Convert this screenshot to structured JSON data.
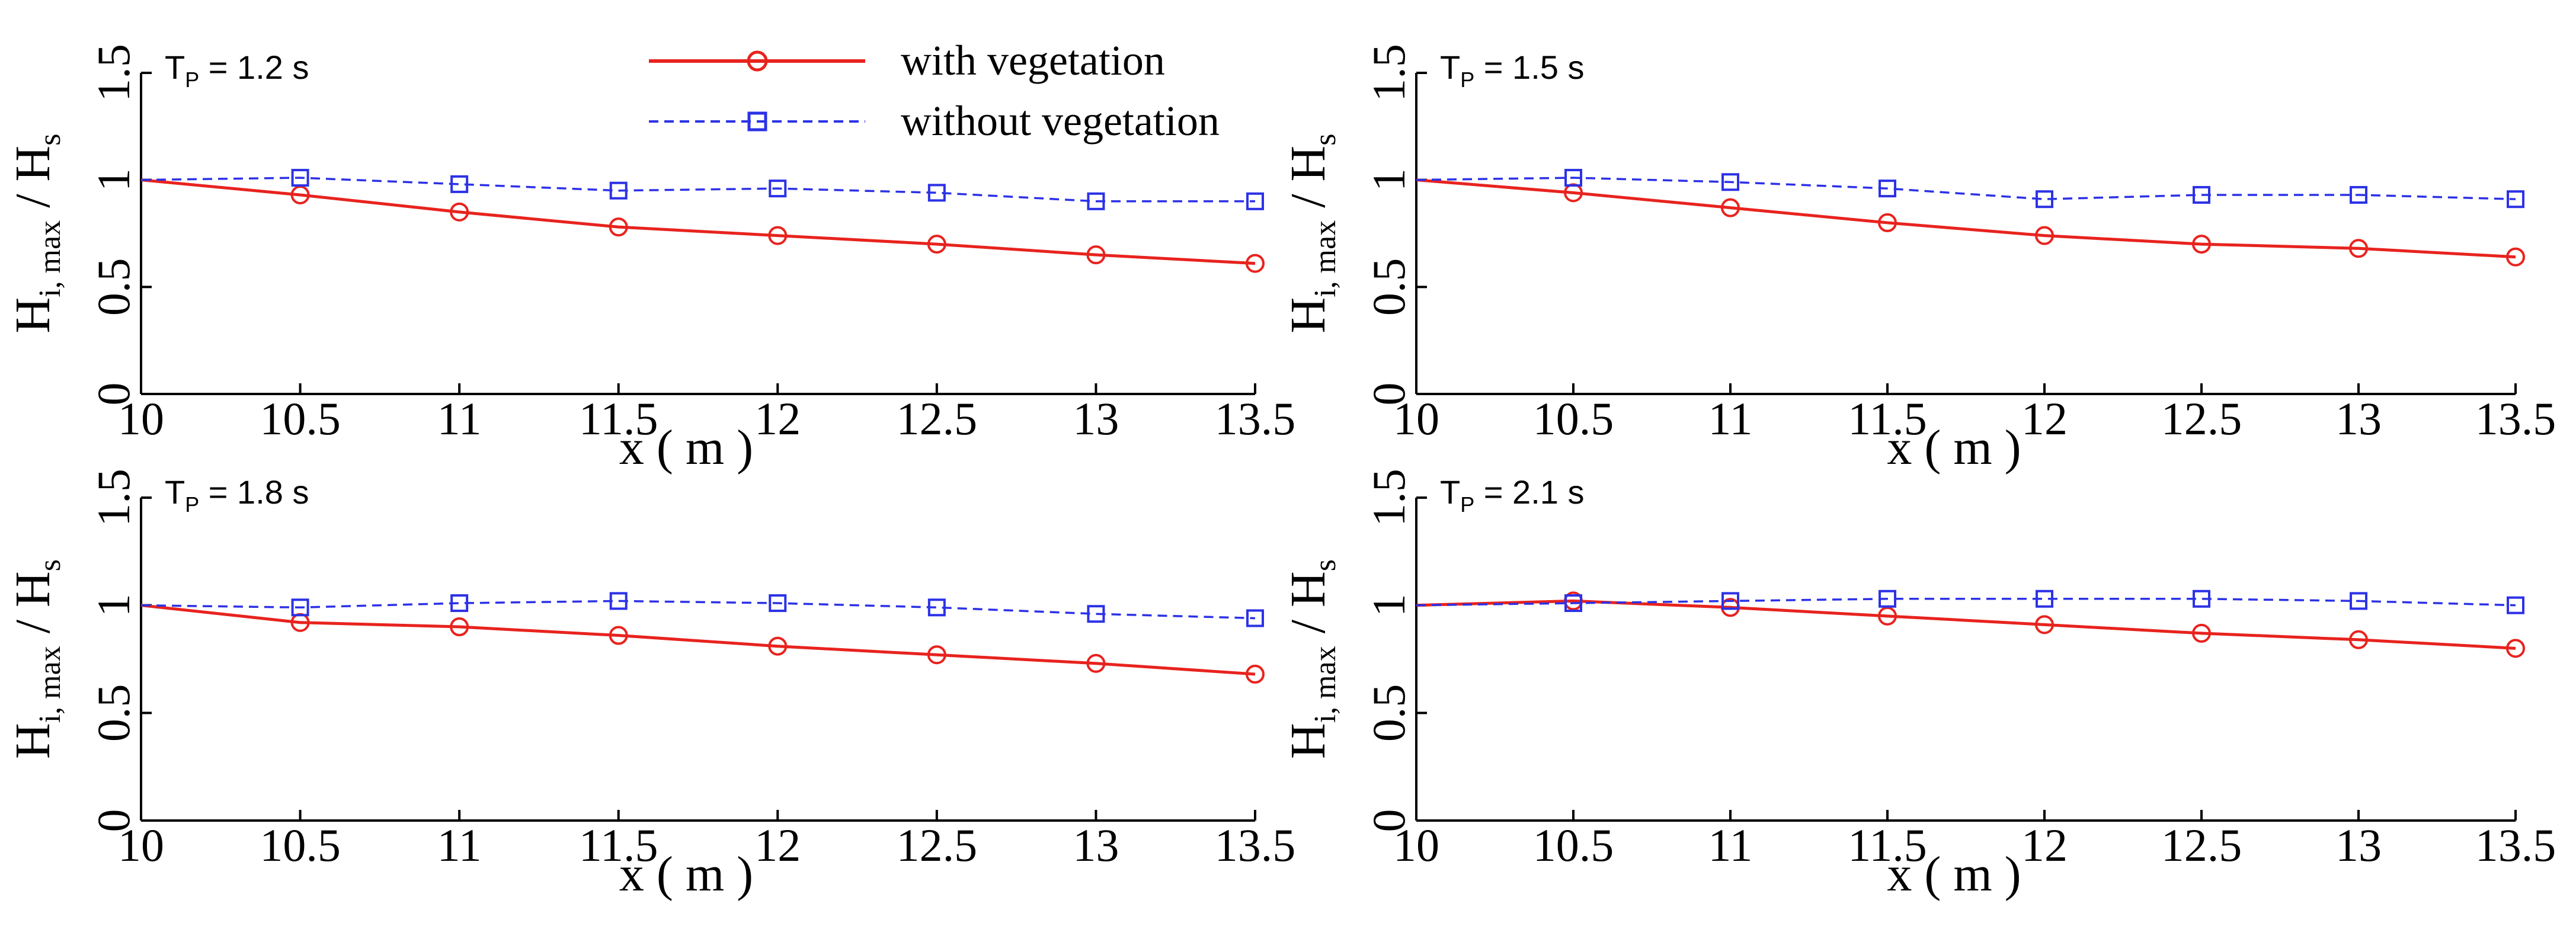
{
  "chart_data": [
    {
      "type": "line",
      "panel_label": "T",
      "panel_label_sub": "P",
      "panel_label_value": " = 1.2 s",
      "xlabel": "x ( m )",
      "ylabel": "H",
      "ylabel_sub": "i, max",
      "ylabel_rest": " / H",
      "ylabel_sub2": "s",
      "xlim": [
        10,
        13.5
      ],
      "ylim": [
        0,
        1.5
      ],
      "xticks": [
        10,
        10.5,
        11,
        11.5,
        12,
        12.5,
        13,
        13.5
      ],
      "xtick_labels": [
        "10",
        "10.5",
        "11",
        "11.5",
        "12",
        "12.5",
        "13",
        "13.5"
      ],
      "yticks": [
        0,
        0.5,
        1,
        1.5
      ],
      "ytick_labels": [
        "0",
        "0.5",
        "1",
        "1.5"
      ],
      "x": [
        10,
        10.5,
        11,
        11.5,
        12,
        12.5,
        13,
        13.5
      ],
      "series": [
        {
          "name": "with vegetation",
          "values": [
            1.0,
            0.93,
            0.85,
            0.78,
            0.74,
            0.7,
            0.65,
            0.61
          ]
        },
        {
          "name": "without vegetation",
          "values": [
            1.0,
            1.01,
            0.98,
            0.95,
            0.96,
            0.94,
            0.9,
            0.9
          ]
        }
      ]
    },
    {
      "type": "line",
      "panel_label": "T",
      "panel_label_sub": "P",
      "panel_label_value": " = 1.5 s",
      "xlabel": "x ( m )",
      "ylabel": "H",
      "ylabel_sub": "i, max",
      "ylabel_rest": " / H",
      "ylabel_sub2": "s",
      "xlim": [
        10,
        13.5
      ],
      "ylim": [
        0,
        1.5
      ],
      "xticks": [
        10,
        10.5,
        11,
        11.5,
        12,
        12.5,
        13,
        13.5
      ],
      "xtick_labels": [
        "10",
        "10.5",
        "11",
        "11.5",
        "12",
        "12.5",
        "13",
        "13.5"
      ],
      "yticks": [
        0,
        0.5,
        1,
        1.5
      ],
      "ytick_labels": [
        "0",
        "0.5",
        "1",
        "1.5"
      ],
      "x": [
        10,
        10.5,
        11,
        11.5,
        12,
        12.5,
        13,
        13.5
      ],
      "series": [
        {
          "name": "with vegetation",
          "values": [
            1.0,
            0.94,
            0.87,
            0.8,
            0.74,
            0.7,
            0.68,
            0.64
          ]
        },
        {
          "name": "without vegetation",
          "values": [
            1.0,
            1.01,
            0.99,
            0.96,
            0.91,
            0.93,
            0.93,
            0.91
          ]
        }
      ]
    },
    {
      "type": "line",
      "panel_label": "T",
      "panel_label_sub": "P",
      "panel_label_value": " = 1.8 s",
      "xlabel": "x ( m )",
      "ylabel": "H",
      "ylabel_sub": "i, max",
      "ylabel_rest": " / H",
      "ylabel_sub2": "s",
      "xlim": [
        10,
        13.5
      ],
      "ylim": [
        0,
        1.5
      ],
      "xticks": [
        10,
        10.5,
        11,
        11.5,
        12,
        12.5,
        13,
        13.5
      ],
      "xtick_labels": [
        "10",
        "10.5",
        "11",
        "11.5",
        "12",
        "12.5",
        "13",
        "13.5"
      ],
      "yticks": [
        0,
        0.5,
        1,
        1.5
      ],
      "ytick_labels": [
        "0",
        "0.5",
        "1",
        "1.5"
      ],
      "x": [
        10,
        10.5,
        11,
        11.5,
        12,
        12.5,
        13,
        13.5
      ],
      "series": [
        {
          "name": "with vegetation",
          "values": [
            1.0,
            0.92,
            0.9,
            0.86,
            0.81,
            0.77,
            0.73,
            0.68
          ]
        },
        {
          "name": "without vegetation",
          "values": [
            1.0,
            0.99,
            1.01,
            1.02,
            1.01,
            0.99,
            0.96,
            0.94
          ]
        }
      ]
    },
    {
      "type": "line",
      "panel_label": "T",
      "panel_label_sub": "P",
      "panel_label_value": " = 2.1 s",
      "xlabel": "x ( m )",
      "ylabel": "H",
      "ylabel_sub": "i, max",
      "ylabel_rest": " / H",
      "ylabel_sub2": "s",
      "xlim": [
        10,
        13.5
      ],
      "ylim": [
        0,
        1.5
      ],
      "xticks": [
        10,
        10.5,
        11,
        11.5,
        12,
        12.5,
        13,
        13.5
      ],
      "xtick_labels": [
        "10",
        "10.5",
        "11",
        "11.5",
        "12",
        "12.5",
        "13",
        "13.5"
      ],
      "yticks": [
        0,
        0.5,
        1,
        1.5
      ],
      "ytick_labels": [
        "0",
        "0.5",
        "1",
        "1.5"
      ],
      "x": [
        10,
        10.5,
        11,
        11.5,
        12,
        12.5,
        13,
        13.5
      ],
      "series": [
        {
          "name": "with vegetation",
          "values": [
            1.0,
            1.02,
            0.99,
            0.95,
            0.91,
            0.87,
            0.84,
            0.8
          ]
        },
        {
          "name": "without vegetation",
          "values": [
            1.0,
            1.01,
            1.02,
            1.03,
            1.03,
            1.03,
            1.02,
            1.0
          ]
        }
      ]
    }
  ],
  "legend": {
    "position": "top-center",
    "items": [
      {
        "label": "with vegetation",
        "color": "#e8231e",
        "marker": "circle",
        "dash": "solid"
      },
      {
        "label": "without vegetation",
        "color": "#2c32e6",
        "marker": "square",
        "dash": "dashed"
      }
    ]
  }
}
